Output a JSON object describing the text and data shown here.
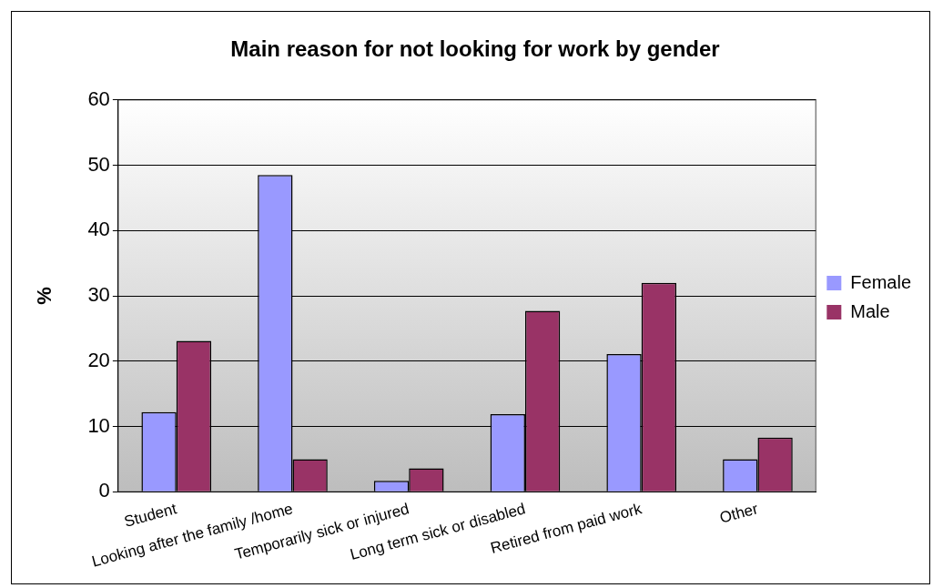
{
  "chart_data": {
    "type": "bar",
    "title": "Main reason for not looking for work by gender",
    "ylabel": "%",
    "categories": [
      "Student",
      "Looking after the family /home",
      "Temporarily sick or injured",
      "Long term sick or disabled",
      "Retired from paid work",
      "Other"
    ],
    "series": [
      {
        "name": "Female",
        "color": "#9999ff",
        "values": [
          12.2,
          48.5,
          1.7,
          11.9,
          21.1,
          5.0
        ]
      },
      {
        "name": "Male",
        "color": "#993366",
        "values": [
          23.1,
          5.0,
          3.6,
          27.7,
          32.0,
          8.3
        ]
      }
    ],
    "ylim": [
      0,
      60
    ],
    "yticks": [
      0,
      10,
      20,
      30,
      40,
      50,
      60
    ],
    "grid": "y",
    "legend": "right"
  }
}
